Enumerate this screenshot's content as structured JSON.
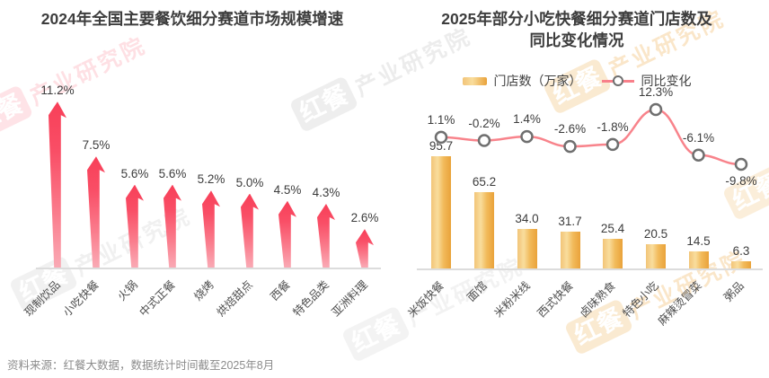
{
  "chart_data": [
    {
      "type": "bar",
      "bar_style": "arrow",
      "title": "2024年全国主要餐饮细分赛道市场规模增速",
      "categories": [
        "现制饮品",
        "小吃快餐",
        "火锅",
        "中式正餐",
        "烧烤",
        "烘焙甜点",
        "西餐",
        "特色品类",
        "亚洲料理"
      ],
      "values": [
        11.2,
        7.5,
        5.6,
        5.6,
        5.2,
        5.0,
        4.5,
        4.3,
        2.6
      ],
      "value_suffix": "%",
      "ylim": [
        0,
        12
      ],
      "bar_color": "#f9465e",
      "grid": false,
      "legend_position": "none"
    },
    {
      "type": "bar+line",
      "title": "2025年部分小吃快餐细分赛道门店数及同比变化情况",
      "title_lines": [
        "2025年部分小吃快餐细分赛道门店数及",
        "同比变化情况"
      ],
      "categories": [
        "米饭快餐",
        "面馆",
        "米粉米线",
        "西式快餐",
        "卤味熟食",
        "特色小吃",
        "麻辣烫冒菜",
        "粥品"
      ],
      "series": [
        {
          "name": "门店数（万家）",
          "type": "bar",
          "values": [
            95.7,
            65.2,
            34.0,
            31.7,
            25.4,
            20.5,
            14.5,
            6.3
          ],
          "color": "#eca43d"
        },
        {
          "name": "同比变化",
          "type": "line",
          "value_suffix": "%",
          "values": [
            1.1,
            -0.2,
            1.4,
            -2.6,
            -1.8,
            12.3,
            -6.1,
            -9.8
          ],
          "color": "#f8838b",
          "marker": "white-circle-gray-ring"
        }
      ],
      "ylim_bar": [
        0,
        100
      ],
      "grid": false,
      "legend_position": "top"
    }
  ],
  "watermark": {
    "logo": "红餐",
    "text": "产业研究院"
  },
  "footer": {
    "source": "资料来源：红餐大数据，数据统计时间截至2025年8月"
  },
  "colors": {
    "arrow_red": "#f9465e",
    "bar_gold": "#eca43d",
    "line_pink": "#f8838b",
    "title_text": "#3d3d3d",
    "source_text": "#8c8c8c",
    "axis": "#dcdcdc"
  }
}
